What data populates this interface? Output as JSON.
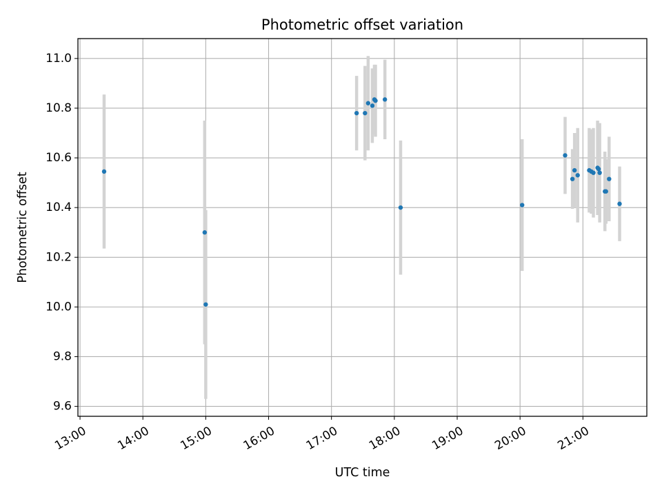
{
  "chart_data": {
    "type": "scatter",
    "title": "Photometric offset variation",
    "xlabel": "UTC time",
    "ylabel": "Photometric offset",
    "grid": true,
    "xlim": [
      "12:58",
      "22:01"
    ],
    "ylim": [
      9.56,
      11.08
    ],
    "xticks": [
      "13:00",
      "14:00",
      "15:00",
      "16:00",
      "17:00",
      "18:00",
      "19:00",
      "20:00",
      "21:00"
    ],
    "yticks": [
      "9.6",
      "9.8",
      "10.0",
      "10.2",
      "10.4",
      "10.6",
      "10.8",
      "11.0"
    ],
    "colors": {
      "points": "#1f77b4",
      "errorbars": "#d3d3d3",
      "grid": "#b0b0b0"
    },
    "series": [
      {
        "points": [
          {
            "x": "13:23",
            "y": 10.545,
            "err": 0.31
          },
          {
            "x": "14:59",
            "y": 10.3,
            "err": 0.45
          },
          {
            "x": "15:00",
            "y": 10.01,
            "err": 0.38
          },
          {
            "x": "17:24",
            "y": 10.78,
            "err": 0.15
          },
          {
            "x": "17:32",
            "y": 10.78,
            "err": 0.19
          },
          {
            "x": "17:35",
            "y": 10.82,
            "err": 0.19
          },
          {
            "x": "17:39",
            "y": 10.81,
            "err": 0.15
          },
          {
            "x": "17:41",
            "y": 10.835,
            "err": 0.14
          },
          {
            "x": "17:42",
            "y": 10.83,
            "err": 0.145
          },
          {
            "x": "17:51",
            "y": 10.835,
            "err": 0.16
          },
          {
            "x": "18:06",
            "y": 10.4,
            "err": 0.27
          },
          {
            "x": "20:02",
            "y": 10.41,
            "err": 0.265
          },
          {
            "x": "20:43",
            "y": 10.61,
            "err": 0.155
          },
          {
            "x": "20:50",
            "y": 10.515,
            "err": 0.12
          },
          {
            "x": "20:52",
            "y": 10.55,
            "err": 0.15
          },
          {
            "x": "20:55",
            "y": 10.53,
            "err": 0.19
          },
          {
            "x": "21:06",
            "y": 10.55,
            "err": 0.17
          },
          {
            "x": "21:08",
            "y": 10.545,
            "err": 0.17
          },
          {
            "x": "21:10",
            "y": 10.54,
            "err": 0.18
          },
          {
            "x": "21:14",
            "y": 10.56,
            "err": 0.19
          },
          {
            "x": "21:15",
            "y": 10.555,
            "err": 0.18
          },
          {
            "x": "21:16",
            "y": 10.54,
            "err": 0.2
          },
          {
            "x": "21:21",
            "y": 10.465,
            "err": 0.16
          },
          {
            "x": "21:22",
            "y": 10.465,
            "err": 0.13
          },
          {
            "x": "21:25",
            "y": 10.515,
            "err": 0.17
          },
          {
            "x": "21:35",
            "y": 10.415,
            "err": 0.15
          }
        ]
      }
    ]
  }
}
